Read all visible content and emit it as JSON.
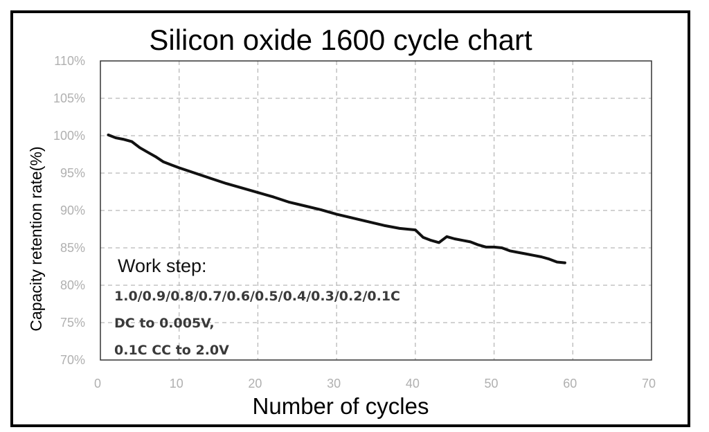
{
  "chart_data": {
    "type": "line",
    "title": "Silicon oxide 1600 cycle chart",
    "xlabel": "Number of cycles",
    "ylabel": "Capacity retention rate(%)",
    "xlim": [
      0,
      70
    ],
    "ylim": [
      70,
      110
    ],
    "x_ticks": [
      "0",
      "10",
      "20",
      "30",
      "40",
      "50",
      "60",
      "70"
    ],
    "y_ticks": [
      "70%",
      "75%",
      "80%",
      "85%",
      "90%",
      "95%",
      "100%",
      "105%",
      "110%"
    ],
    "grid": true,
    "series": [
      {
        "x": [
          1,
          2,
          3,
          4,
          5,
          6,
          7,
          8,
          9,
          10,
          12,
          14,
          16,
          18,
          20,
          22,
          24,
          26,
          28,
          30,
          32,
          34,
          36,
          38,
          40,
          41,
          42,
          43,
          44,
          45,
          46,
          47,
          48,
          49,
          50,
          51,
          52,
          53,
          54,
          55,
          56,
          57,
          58,
          59
        ],
        "y": [
          100.1,
          99.7,
          99.5,
          99.2,
          98.4,
          97.8,
          97.2,
          96.5,
          96.1,
          95.7,
          95.0,
          94.3,
          93.6,
          93.0,
          92.4,
          91.8,
          91.1,
          90.6,
          90.1,
          89.5,
          89.0,
          88.5,
          88.0,
          87.6,
          87.4,
          86.4,
          86.0,
          85.7,
          86.5,
          86.2,
          86.0,
          85.8,
          85.4,
          85.1,
          85.1,
          85.0,
          84.6,
          84.4,
          84.2,
          84.0,
          83.8,
          83.5,
          83.1,
          83.0
        ]
      }
    ],
    "annotation": {
      "heading": "Work step:",
      "lines": [
        "1.0/0.9/0.8/0.7/0.6/0.5/0.4/0.3/0.2/0.1C",
        "DC to 0.005V,",
        "0.1C CC to 2.0V"
      ]
    }
  }
}
